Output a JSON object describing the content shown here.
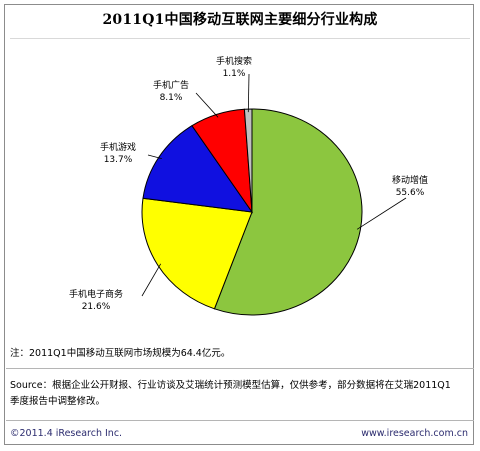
{
  "chart_data": {
    "type": "pie",
    "title": "2011Q1中国移动互联网主要细分行业构成",
    "slices": [
      {
        "name": "移动增值",
        "value_label": "55.6%",
        "value": 55.6,
        "color": "#8cc63f"
      },
      {
        "name": "手机电子商务",
        "value_label": "21.6%",
        "value": 21.6,
        "color": "#ffff00"
      },
      {
        "name": "手机游戏",
        "value_label": "13.7%",
        "value": 13.7,
        "color": "#1010e0"
      },
      {
        "name": "手机广告",
        "value_label": "8.1%",
        "value": 8.1,
        "color": "#ff0000"
      },
      {
        "name": "手机搜索",
        "value_label": "1.1%",
        "value": 1.1,
        "color": "#bfbfbf"
      }
    ]
  },
  "note": "注：2011Q1中国移动互联网市场规模为64.4亿元。",
  "source": "Source：根据企业公开财报、行业访谈及艾瑞统计预测模型估算，仅供参考，部分数据将在艾瑞2011Q1季度报告中调整修改。",
  "footer": {
    "copyright": "©2011.4 iResearch Inc.",
    "website": "www.iresearch.com.cn"
  }
}
